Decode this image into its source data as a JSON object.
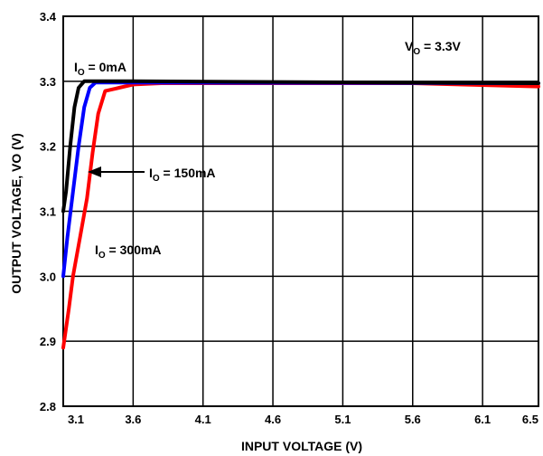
{
  "chart_data": {
    "type": "line",
    "title": "",
    "xlabel": "INPUT VOLTAGE (V)",
    "ylabel": "OUTPUT VOLTAGE, VO (V)",
    "xlim": [
      3.1,
      6.5
    ],
    "ylim": [
      2.8,
      3.4
    ],
    "xticks": [
      "3.1",
      "3.6",
      "4.1",
      "4.6",
      "5.1",
      "5.6",
      "6.1",
      "6.5"
    ],
    "yticks": [
      "2.8",
      "2.9",
      "3.0",
      "3.1",
      "3.2",
      "3.3",
      "3.4"
    ],
    "grid": true,
    "legend": "none",
    "series": [
      {
        "name": "IO = 0mA",
        "color": "#000000",
        "points": [
          [
            3.1,
            3.1
          ],
          [
            3.12,
            3.13
          ],
          [
            3.15,
            3.2
          ],
          [
            3.18,
            3.26
          ],
          [
            3.21,
            3.29
          ],
          [
            3.25,
            3.3
          ],
          [
            3.3,
            3.3
          ],
          [
            3.6,
            3.3
          ],
          [
            6.5,
            3.297
          ]
        ]
      },
      {
        "name": "IO = 150mA",
        "color": "#0000ff",
        "points": [
          [
            3.1,
            3.0
          ],
          [
            3.13,
            3.06
          ],
          [
            3.17,
            3.13
          ],
          [
            3.21,
            3.2
          ],
          [
            3.25,
            3.26
          ],
          [
            3.29,
            3.29
          ],
          [
            3.33,
            3.298
          ],
          [
            3.6,
            3.298
          ],
          [
            6.5,
            3.297
          ]
        ]
      },
      {
        "name": "IO = 300mA",
        "color": "#ff0000",
        "points": [
          [
            3.1,
            2.89
          ],
          [
            3.14,
            2.95
          ],
          [
            3.17,
            3.0
          ],
          [
            3.22,
            3.06
          ],
          [
            3.27,
            3.12
          ],
          [
            3.31,
            3.19
          ],
          [
            3.35,
            3.25
          ],
          [
            3.4,
            3.285
          ],
          [
            3.5,
            3.29
          ],
          [
            3.6,
            3.295
          ],
          [
            3.8,
            3.297
          ],
          [
            5.6,
            3.297
          ],
          [
            6.5,
            3.292
          ]
        ]
      }
    ],
    "annotations": {
      "vo_label": {
        "main": "V",
        "sub": "O",
        "rest": " = 3.3V"
      },
      "io0_label": {
        "main": "I",
        "sub": "O",
        "rest": " = 0mA"
      },
      "io150_label": {
        "main": "I",
        "sub": "O",
        "rest": " = 150mA"
      },
      "io300_label": {
        "main": "I",
        "sub": "O",
        "rest": " = 300mA"
      }
    }
  }
}
